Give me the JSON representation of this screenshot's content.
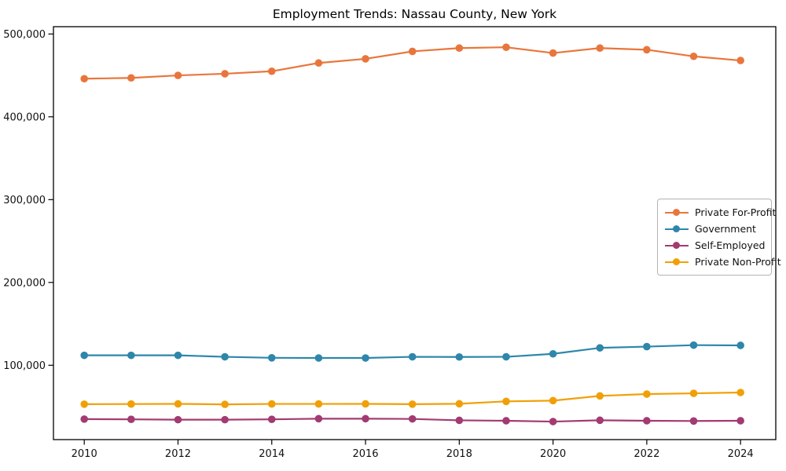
{
  "chart_data": {
    "type": "line",
    "title": "Employment Trends: Nassau County, New York",
    "xlabel": "",
    "ylabel": "",
    "x": [
      2010,
      2011,
      2012,
      2013,
      2014,
      2015,
      2016,
      2017,
      2018,
      2019,
      2020,
      2021,
      2022,
      2023,
      2024
    ],
    "series": [
      {
        "name": "Private For-Profit",
        "color": "#e8763c",
        "values": [
          446000,
          447000,
          450000,
          452000,
          455000,
          465000,
          470000,
          479000,
          483000,
          484000,
          477000,
          483000,
          481000,
          473000,
          468000
        ]
      },
      {
        "name": "Government",
        "color": "#2e86ab",
        "values": [
          112000,
          112000,
          112000,
          110200,
          109000,
          108800,
          108800,
          110200,
          110000,
          110200,
          113800,
          121000,
          122500,
          124300,
          124000
        ]
      },
      {
        "name": "Self-Employed",
        "color": "#a23b72",
        "values": [
          35000,
          34700,
          34300,
          34300,
          34700,
          35500,
          35500,
          35200,
          33500,
          33000,
          32000,
          33600,
          33000,
          32700,
          33000
        ]
      },
      {
        "name": "Private Non-Profit",
        "color": "#f0a007",
        "values": [
          53000,
          53200,
          53400,
          52800,
          53300,
          53300,
          53400,
          53000,
          53500,
          56400,
          57300,
          63000,
          65200,
          66100,
          67100
        ]
      }
    ],
    "xticks": [
      2010,
      2012,
      2014,
      2016,
      2018,
      2020,
      2022,
      2024
    ],
    "xtick_labels": [
      "2010",
      "2012",
      "2014",
      "2016",
      "2018",
      "2020",
      "2022",
      "2024"
    ],
    "yticks": [
      100000,
      200000,
      300000,
      400000,
      500000
    ],
    "ytick_labels": [
      "100,000",
      "200,000",
      "300,000",
      "400,000",
      "500,000"
    ],
    "ylim": [
      10000,
      509000
    ],
    "xlim": [
      2009.34,
      2024.75
    ],
    "grid": false,
    "legend_position": "center right",
    "marker": "o",
    "axis_color": "#000000"
  }
}
